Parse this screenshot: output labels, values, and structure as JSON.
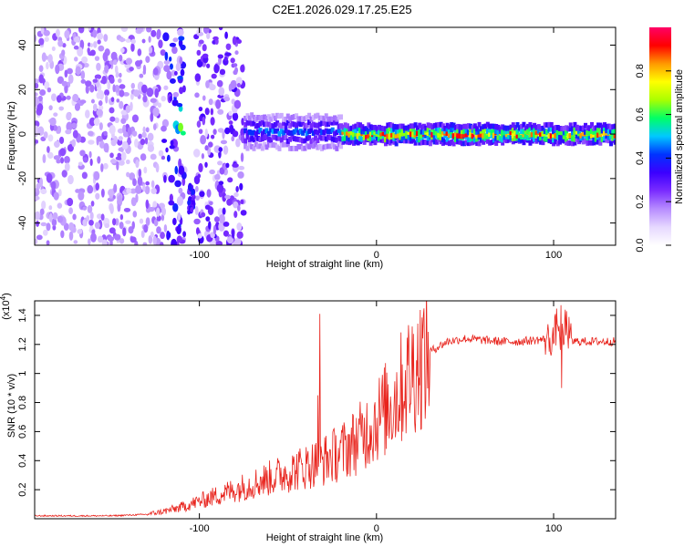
{
  "title": "C2E1.2026.029.17.25.E25",
  "chart_data": [
    {
      "type": "heatmap",
      "title": "C2E1.2026.029.17.25.E25",
      "xlabel": "Height of straight line (km)",
      "ylabel": "Frequency (Hz)",
      "xlim": [
        -193,
        135
      ],
      "ylim": [
        -50,
        48
      ],
      "xticks": [
        -100,
        0,
        100
      ],
      "yticks": [
        -40,
        -20,
        0,
        20,
        40
      ],
      "colorbar": {
        "label": "Normalized spectral amplitude",
        "range": [
          0.0,
          1.0
        ],
        "ticks": [
          0.0,
          0.2,
          0.4,
          0.6,
          0.8
        ],
        "colors": [
          "#ffffff",
          "#e6d8ff",
          "#b78cff",
          "#7a2cff",
          "#3b00ff",
          "#0033ff",
          "#00c8ff",
          "#00ff66",
          "#aaff00",
          "#ffff00",
          "#ff9900",
          "#ff0000",
          "#ff0066"
        ]
      },
      "regions": [
        {
          "x_range": [
            -193,
            -120
          ],
          "description": "broadband noise",
          "max_amplitude": 0.15
        },
        {
          "x_range": [
            -120,
            -105
          ],
          "freq_hz": 5,
          "max_amplitude": 0.35
        },
        {
          "x_range": [
            -105,
            -75
          ],
          "freq_hz": -30,
          "max_amplitude": 0.25
        },
        {
          "x_range": [
            -75,
            -20
          ],
          "freq_hz": 1,
          "max_amplitude": 0.5
        },
        {
          "x_range": [
            -20,
            100
          ],
          "freq_hz": 0,
          "max_amplitude": 0.95
        },
        {
          "x_range": [
            100,
            135
          ],
          "freq_hz": 0,
          "max_amplitude": 0.9
        }
      ]
    },
    {
      "type": "line",
      "xlabel": "Height of straight line (km)",
      "ylabel": "SNR (10 * v/v)",
      "scale_label": "(x10",
      "scale_exp": "4",
      "scale_close": ")",
      "xlim": [
        -193,
        135
      ],
      "ylim": [
        0,
        1.5
      ],
      "xticks": [
        -100,
        0,
        100
      ],
      "yticks": [
        0.2,
        0.4,
        0.6,
        0.8,
        1.0,
        1.2,
        1.4
      ],
      "series": [
        {
          "name": "SNR",
          "color": "#e8231c",
          "x": [
            -193,
            -150,
            -140,
            -130,
            -120,
            -110,
            -100,
            -90,
            -80,
            -70,
            -60,
            -50,
            -40,
            -30,
            -20,
            -10,
            0,
            10,
            15,
            20,
            30,
            40,
            50,
            60,
            70,
            80,
            90,
            100,
            104,
            110,
            120,
            135
          ],
          "y": [
            0.02,
            0.02,
            0.025,
            0.03,
            0.05,
            0.08,
            0.12,
            0.16,
            0.2,
            0.24,
            0.28,
            0.32,
            0.36,
            0.4,
            0.46,
            0.55,
            0.68,
            0.82,
            0.92,
            1.02,
            1.15,
            1.22,
            1.24,
            1.23,
            1.22,
            1.22,
            1.23,
            1.24,
            1.45,
            1.22,
            1.22,
            1.22
          ],
          "spikes": [
            {
              "x": -32,
              "y": 1.41
            },
            {
              "x": -33,
              "y": 0.85
            },
            {
              "x": 104,
              "y": 1.47
            },
            {
              "x": 104.5,
              "y": 0.9
            }
          ]
        }
      ]
    }
  ]
}
